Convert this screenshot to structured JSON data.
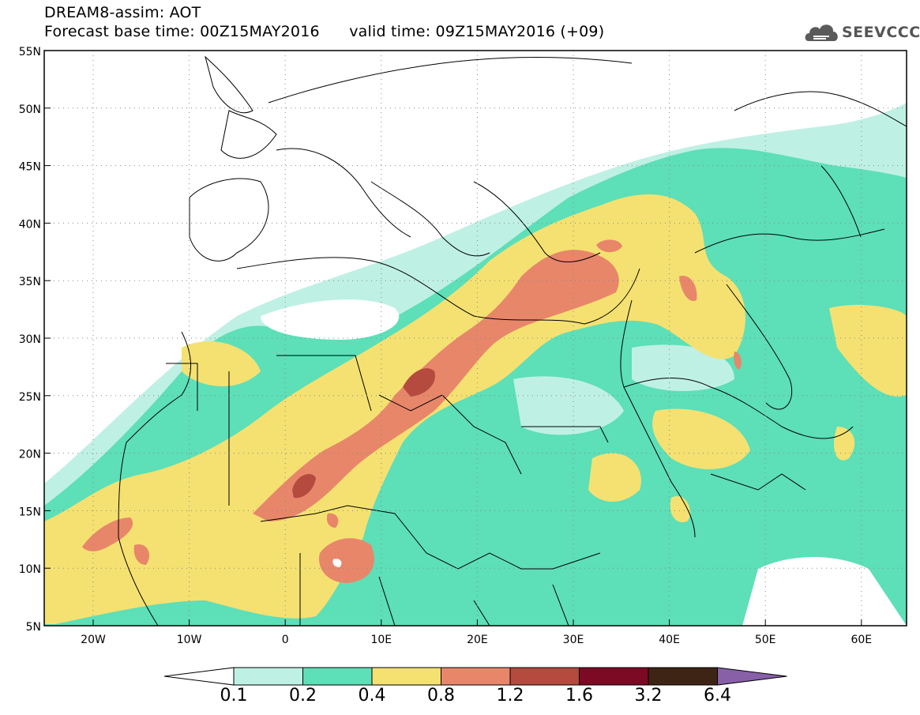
{
  "header": {
    "model_label": "DREAM8-assim: AOT",
    "forecast_base": "Forecast base time: 00Z15MAY2016",
    "valid_time": "valid time: 09Z15MAY2016 (+09)"
  },
  "logo": {
    "text": "SEEVCCC",
    "icon": "cloud-icon"
  },
  "axes": {
    "lat_labels": [
      "55N",
      "50N",
      "45N",
      "40N",
      "35N",
      "30N",
      "25N",
      "20N",
      "15N",
      "10N",
      "5N"
    ],
    "lon_labels": [
      "20W",
      "10W",
      "0",
      "10E",
      "20E",
      "30E",
      "40E",
      "50E",
      "60E"
    ]
  },
  "colorbar": {
    "labels": [
      "0.1",
      "0.2",
      "0.4",
      "0.8",
      "1.2",
      "1.6",
      "3.2",
      "6.4"
    ],
    "colors": [
      "#ffffff",
      "#bff0e4",
      "#5ddfb8",
      "#f5e171",
      "#e8866a",
      "#b54a3f",
      "#7d0a25",
      "#3e2415",
      "#8860a8"
    ]
  },
  "legend_colors": {
    "c1": "#bff0e4",
    "c2": "#5ddfb8",
    "c3": "#f5e171",
    "c4": "#e8866a",
    "c5": "#b54a3f"
  }
}
